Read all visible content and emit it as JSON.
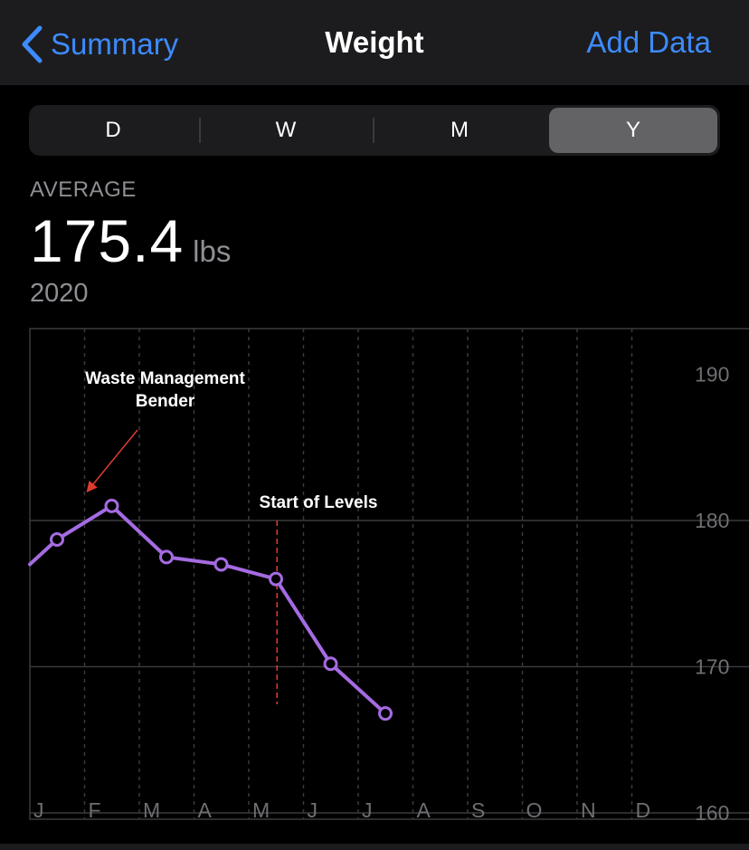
{
  "nav": {
    "back_label": "Summary",
    "title": "Weight",
    "add_label": "Add Data"
  },
  "segments": [
    {
      "label": "D",
      "active": false
    },
    {
      "label": "W",
      "active": false
    },
    {
      "label": "M",
      "active": false
    },
    {
      "label": "Y",
      "active": true
    }
  ],
  "summary": {
    "label": "AVERAGE",
    "value": "175.4",
    "unit": "lbs",
    "period": "2020"
  },
  "chart_data": {
    "type": "line",
    "categories": [
      "J",
      "F",
      "M",
      "A",
      "M",
      "J",
      "J",
      "A",
      "S",
      "O",
      "N",
      "D"
    ],
    "series": [
      {
        "values": [
          178.7,
          181.0,
          177.5,
          177.0,
          176.0,
          170.2,
          166.8,
          null,
          null,
          null,
          null,
          null
        ]
      }
    ],
    "y_ticks": [
      190,
      180,
      170,
      160
    ],
    "ylim": [
      160,
      190
    ],
    "grid": true,
    "line_color": "#a56be2",
    "annotations": [
      {
        "text": "Waste Management Bender",
        "x_index": 1,
        "y": 181.0
      },
      {
        "text": "Start of Levels",
        "x_index": 4.5
      }
    ]
  }
}
